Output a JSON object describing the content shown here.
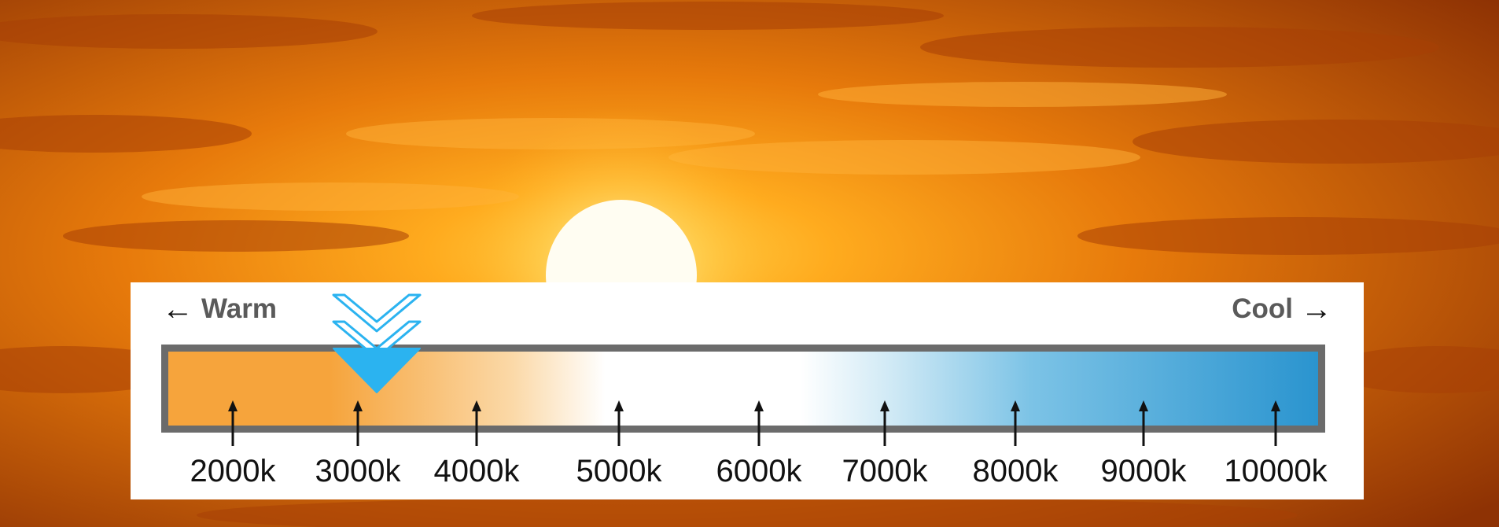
{
  "labels": {
    "warm": "Warm",
    "cool": "Cool"
  },
  "scale": {
    "unit_suffix": "k",
    "ticks": [
      {
        "value": 2000,
        "label": "2000k"
      },
      {
        "value": 3000,
        "label": "3000k"
      },
      {
        "value": 4000,
        "label": "4000k"
      },
      {
        "value": 5000,
        "label": "5000k"
      },
      {
        "value": 6000,
        "label": "6000k"
      },
      {
        "value": 7000,
        "label": "7000k"
      },
      {
        "value": 8000,
        "label": "8000k"
      },
      {
        "value": 9000,
        "label": "9000k"
      },
      {
        "value": 10000,
        "label": "10000k"
      }
    ],
    "indicator_value": 3200
  },
  "colors": {
    "warm": "#f6a43c",
    "neutral": "#ffffff",
    "cool": "#2a94cf",
    "marker": "#2bb3f0",
    "bar_border": "#6b6b6b"
  }
}
